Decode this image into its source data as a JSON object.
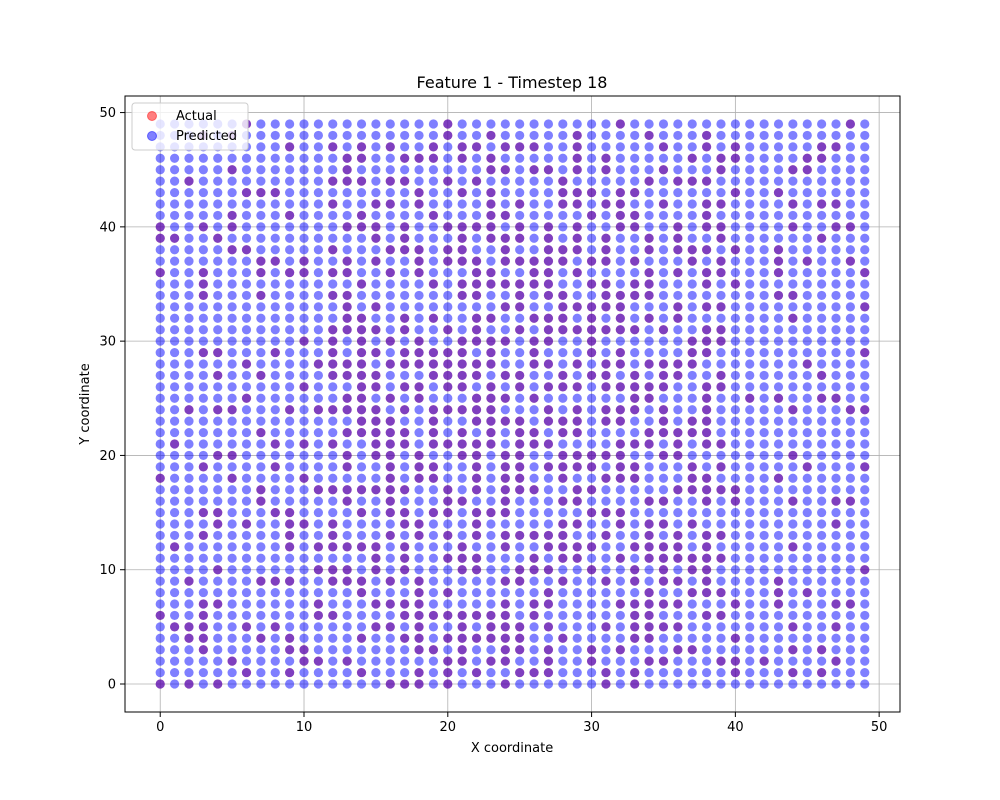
{
  "chart_data": {
    "type": "scatter",
    "title": "Feature 1 - Timestep 18",
    "xlabel": "X coordinate",
    "ylabel": "Y coordinate",
    "xlim": [
      -2.45,
      51.45
    ],
    "ylim": [
      -2.45,
      51.45
    ],
    "xticks": [
      0,
      10,
      20,
      30,
      40,
      50
    ],
    "yticks": [
      0,
      10,
      20,
      30,
      40,
      50
    ],
    "xtick_labels": [
      "0",
      "10",
      "20",
      "30",
      "40",
      "50"
    ],
    "ytick_labels": [
      "0",
      "10",
      "20",
      "30",
      "40",
      "50"
    ],
    "grid": true,
    "legend_position": "top-left",
    "grid_spec": {
      "x_start": 0,
      "x_end": 49,
      "y_start": 0,
      "y_end": 49,
      "step": 1
    },
    "series": [
      {
        "name": "Actual",
        "color": "#ff0000",
        "alpha": 0.5,
        "points": "sparse subset of 50x50 integer grid (visible as purple where overlapping Predicted)"
      },
      {
        "name": "Predicted",
        "color": "#0000ff",
        "alpha": 0.5,
        "points": "all integer grid points x=0..49, y=0..49"
      }
    ]
  }
}
